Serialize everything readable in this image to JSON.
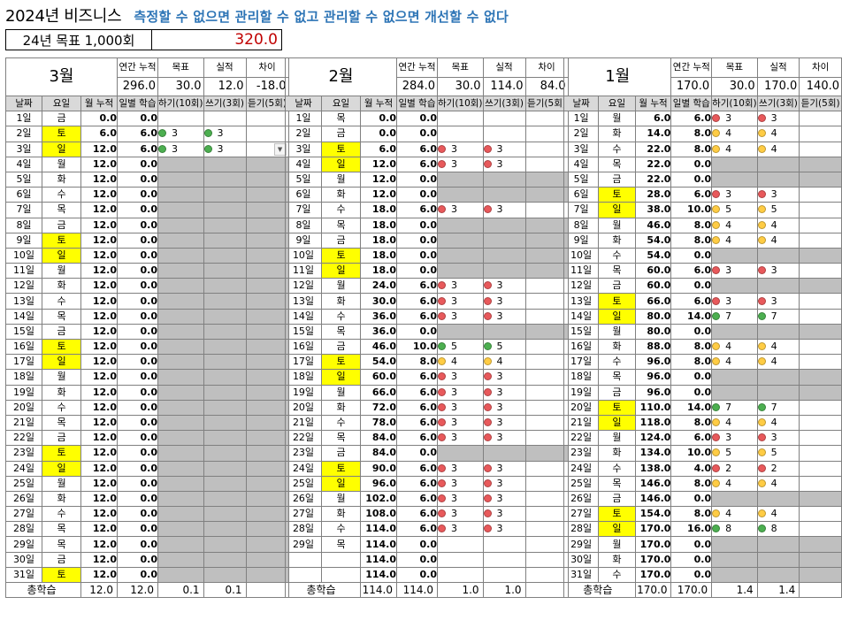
{
  "title": {
    "main": "2024년 비즈니스",
    "slogan": "측정할 수 없으면  관리할 수 없고 관리할 수 없으면 개선할 수 없다"
  },
  "goal": {
    "label": "24년 목표 1,000회",
    "value": "320.0"
  },
  "colors": {
    "red": "#e8595b",
    "yellow": "#ffcc44",
    "green": "#4caf50",
    "highlight": "#ffff00",
    "grey": "#bfbfbf",
    "accent": "#2e75b6"
  },
  "labels": {
    "annual_cum": "연간 누적",
    "target": "목표",
    "actual": "실적",
    "diff": "차이",
    "cols": [
      "날짜",
      "요일",
      "월 누적",
      "일별 학습",
      "하기(10회)",
      "쓰기(3회)",
      "듣기(5회)"
    ],
    "total": "총학습"
  },
  "months": [
    {
      "name": "3월",
      "summary": {
        "annual_cum": "296.0",
        "target": "30.0",
        "actual": "12.0",
        "diff": "-18.0"
      },
      "total": {
        "cum": "12.0",
        "daily": "12.0",
        "speak": "0.1",
        "write": "0.1",
        "listen": ""
      },
      "rows": [
        [
          "1일",
          "금",
          "0.0",
          "0.0",
          "",
          "",
          "",
          ""
        ],
        [
          "2일",
          "토",
          "6.0",
          "6.0",
          "g 3",
          "g 3",
          "",
          ""
        ],
        [
          "3일",
          "일",
          "12.0",
          "6.0",
          "g 3",
          "g 3",
          "dd",
          ""
        ],
        [
          "4일",
          "월",
          "12.0",
          "0.0",
          "-",
          "-",
          "-",
          ""
        ],
        [
          "5일",
          "화",
          "12.0",
          "0.0",
          "-",
          "-",
          "-",
          ""
        ],
        [
          "6일",
          "수",
          "12.0",
          "0.0",
          "-",
          "-",
          "-",
          ""
        ],
        [
          "7일",
          "목",
          "12.0",
          "0.0",
          "-",
          "-",
          "-",
          ""
        ],
        [
          "8일",
          "금",
          "12.0",
          "0.0",
          "-",
          "-",
          "-",
          ""
        ],
        [
          "9일",
          "토",
          "12.0",
          "0.0",
          "-",
          "-",
          "-",
          ""
        ],
        [
          "10일",
          "일",
          "12.0",
          "0.0",
          "-",
          "-",
          "-",
          ""
        ],
        [
          "11일",
          "월",
          "12.0",
          "0.0",
          "-",
          "-",
          "-",
          ""
        ],
        [
          "12일",
          "화",
          "12.0",
          "0.0",
          "-",
          "-",
          "-",
          ""
        ],
        [
          "13일",
          "수",
          "12.0",
          "0.0",
          "-",
          "-",
          "-",
          ""
        ],
        [
          "14일",
          "목",
          "12.0",
          "0.0",
          "-",
          "-",
          "-",
          ""
        ],
        [
          "15일",
          "금",
          "12.0",
          "0.0",
          "-",
          "-",
          "-",
          ""
        ],
        [
          "16일",
          "토",
          "12.0",
          "0.0",
          "-",
          "-",
          "-",
          ""
        ],
        [
          "17일",
          "일",
          "12.0",
          "0.0",
          "-",
          "-",
          "-",
          ""
        ],
        [
          "18일",
          "월",
          "12.0",
          "0.0",
          "-",
          "-",
          "-",
          ""
        ],
        [
          "19일",
          "화",
          "12.0",
          "0.0",
          "-",
          "-",
          "-",
          ""
        ],
        [
          "20일",
          "수",
          "12.0",
          "0.0",
          "-",
          "-",
          "-",
          ""
        ],
        [
          "21일",
          "목",
          "12.0",
          "0.0",
          "-",
          "-",
          "-",
          ""
        ],
        [
          "22일",
          "금",
          "12.0",
          "0.0",
          "-",
          "-",
          "-",
          ""
        ],
        [
          "23일",
          "토",
          "12.0",
          "0.0",
          "-",
          "-",
          "-",
          ""
        ],
        [
          "24일",
          "일",
          "12.0",
          "0.0",
          "-",
          "-",
          "-",
          ""
        ],
        [
          "25일",
          "월",
          "12.0",
          "0.0",
          "-",
          "-",
          "-",
          ""
        ],
        [
          "26일",
          "화",
          "12.0",
          "0.0",
          "-",
          "-",
          "-",
          ""
        ],
        [
          "27일",
          "수",
          "12.0",
          "0.0",
          "-",
          "-",
          "-",
          ""
        ],
        [
          "28일",
          "목",
          "12.0",
          "0.0",
          "-",
          "-",
          "-",
          ""
        ],
        [
          "29일",
          "목",
          "12.0",
          "0.0",
          "-",
          "-",
          "-",
          ""
        ],
        [
          "30일",
          "금",
          "12.0",
          "0.0",
          "-",
          "-",
          "-",
          ""
        ],
        [
          "31일",
          "토",
          "12.0",
          "0.0",
          "-",
          "-",
          "-",
          ""
        ]
      ]
    },
    {
      "name": "2월",
      "summary": {
        "annual_cum": "284.0",
        "target": "30.0",
        "actual": "114.0",
        "diff": "84.0"
      },
      "total": {
        "cum": "114.0",
        "daily": "114.0",
        "speak": "1.0",
        "write": "1.0",
        "listen": ""
      },
      "rows": [
        [
          "1일",
          "목",
          "0.0",
          "0.0",
          "",
          "",
          "",
          ""
        ],
        [
          "2일",
          "금",
          "0.0",
          "0.0",
          "",
          "",
          "",
          ""
        ],
        [
          "3일",
          "토",
          "6.0",
          "6.0",
          "r 3",
          "r 3",
          "",
          ""
        ],
        [
          "4일",
          "일",
          "12.0",
          "6.0",
          "r 3",
          "r 3",
          "",
          ""
        ],
        [
          "5일",
          "월",
          "12.0",
          "0.0",
          "-",
          "-",
          "-",
          ""
        ],
        [
          "6일",
          "화",
          "12.0",
          "0.0",
          "-",
          "-",
          "-",
          ""
        ],
        [
          "7일",
          "수",
          "18.0",
          "6.0",
          "r 3",
          "r 3",
          "",
          ""
        ],
        [
          "8일",
          "목",
          "18.0",
          "0.0",
          "-",
          "-",
          "-",
          ""
        ],
        [
          "9일",
          "금",
          "18.0",
          "0.0",
          "-",
          "-",
          "-",
          ""
        ],
        [
          "10일",
          "토",
          "18.0",
          "0.0",
          "-",
          "-",
          "-",
          ""
        ],
        [
          "11일",
          "일",
          "18.0",
          "0.0",
          "-",
          "-",
          "-",
          ""
        ],
        [
          "12일",
          "월",
          "24.0",
          "6.0",
          "r 3",
          "r 3",
          "",
          ""
        ],
        [
          "13일",
          "화",
          "30.0",
          "6.0",
          "r 3",
          "r 3",
          "",
          ""
        ],
        [
          "14일",
          "수",
          "36.0",
          "6.0",
          "r 3",
          "r 3",
          "",
          ""
        ],
        [
          "15일",
          "목",
          "36.0",
          "0.0",
          "-",
          "-",
          "-",
          ""
        ],
        [
          "16일",
          "금",
          "46.0",
          "10.0",
          "g 5",
          "g 5",
          "",
          ""
        ],
        [
          "17일",
          "토",
          "54.0",
          "8.0",
          "y 4",
          "y 4",
          "",
          ""
        ],
        [
          "18일",
          "일",
          "60.0",
          "6.0",
          "r 3",
          "r 3",
          "",
          ""
        ],
        [
          "19일",
          "월",
          "66.0",
          "6.0",
          "r 3",
          "r 3",
          "",
          ""
        ],
        [
          "20일",
          "화",
          "72.0",
          "6.0",
          "r 3",
          "r 3",
          "",
          ""
        ],
        [
          "21일",
          "수",
          "78.0",
          "6.0",
          "r 3",
          "r 3",
          "",
          ""
        ],
        [
          "22일",
          "목",
          "84.0",
          "6.0",
          "r 3",
          "r 3",
          "",
          ""
        ],
        [
          "23일",
          "금",
          "84.0",
          "0.0",
          "-",
          "-",
          "-",
          ""
        ],
        [
          "24일",
          "토",
          "90.0",
          "6.0",
          "r 3",
          "r 3",
          "",
          ""
        ],
        [
          "25일",
          "일",
          "96.0",
          "6.0",
          "r 3",
          "r 3",
          "",
          ""
        ],
        [
          "26일",
          "월",
          "102.0",
          "6.0",
          "r 3",
          "r 3",
          "",
          ""
        ],
        [
          "27일",
          "화",
          "108.0",
          "6.0",
          "r 3",
          "r 3",
          "",
          ""
        ],
        [
          "28일",
          "수",
          "114.0",
          "6.0",
          "r 3",
          "r 3",
          "",
          ""
        ],
        [
          "29일",
          "목",
          "114.0",
          "0.0",
          "",
          "",
          "",
          ""
        ],
        [
          "",
          "",
          "114.0",
          "0.0",
          "",
          "",
          "",
          ""
        ],
        [
          "",
          "",
          "114.0",
          "0.0",
          "",
          "",
          "",
          ""
        ]
      ]
    },
    {
      "name": "1월",
      "summary": {
        "annual_cum": "170.0",
        "target": "30.0",
        "actual": "170.0",
        "diff": "140.0"
      },
      "total": {
        "cum": "170.0",
        "daily": "170.0",
        "speak": "1.4",
        "write": "1.4",
        "listen": ""
      },
      "rows": [
        [
          "1일",
          "월",
          "6.0",
          "6.0",
          "r 3",
          "r 3",
          "",
          ""
        ],
        [
          "2일",
          "화",
          "14.0",
          "8.0",
          "y 4",
          "y 4",
          "",
          ""
        ],
        [
          "3일",
          "수",
          "22.0",
          "8.0",
          "y 4",
          "y 4",
          "",
          ""
        ],
        [
          "4일",
          "목",
          "22.0",
          "0.0",
          "-",
          "-",
          "-",
          ""
        ],
        [
          "5일",
          "금",
          "22.0",
          "0.0",
          "-",
          "-",
          "-",
          ""
        ],
        [
          "6일",
          "토",
          "28.0",
          "6.0",
          "r 3",
          "r 3",
          "",
          ""
        ],
        [
          "7일",
          "일",
          "38.0",
          "10.0",
          "y 5",
          "y 5",
          "",
          ""
        ],
        [
          "8일",
          "월",
          "46.0",
          "8.0",
          "y 4",
          "y 4",
          "",
          ""
        ],
        [
          "9일",
          "화",
          "54.0",
          "8.0",
          "y 4",
          "y 4",
          "",
          ""
        ],
        [
          "10일",
          "수",
          "54.0",
          "0.0",
          "-",
          "-",
          "-",
          ""
        ],
        [
          "11일",
          "목",
          "60.0",
          "6.0",
          "r 3",
          "r 3",
          "",
          ""
        ],
        [
          "12일",
          "금",
          "60.0",
          "0.0",
          "-",
          "-",
          "-",
          ""
        ],
        [
          "13일",
          "토",
          "66.0",
          "6.0",
          "r 3",
          "r 3",
          "",
          ""
        ],
        [
          "14일",
          "일",
          "80.0",
          "14.0",
          "g 7",
          "g 7",
          "",
          ""
        ],
        [
          "15일",
          "월",
          "80.0",
          "0.0",
          "-",
          "-",
          "-",
          ""
        ],
        [
          "16일",
          "화",
          "88.0",
          "8.0",
          "y 4",
          "y 4",
          "",
          ""
        ],
        [
          "17일",
          "수",
          "96.0",
          "8.0",
          "y 4",
          "y 4",
          "",
          ""
        ],
        [
          "18일",
          "목",
          "96.0",
          "0.0",
          "-",
          "-",
          "-",
          ""
        ],
        [
          "19일",
          "금",
          "96.0",
          "0.0",
          "-",
          "-",
          "-",
          ""
        ],
        [
          "20일",
          "토",
          "110.0",
          "14.0",
          "g 7",
          "g 7",
          "",
          ""
        ],
        [
          "21일",
          "일",
          "118.0",
          "8.0",
          "y 4",
          "y 4",
          "",
          ""
        ],
        [
          "22일",
          "월",
          "124.0",
          "6.0",
          "r 3",
          "r 3",
          "",
          ""
        ],
        [
          "23일",
          "화",
          "134.0",
          "10.0",
          "y 5",
          "y 5",
          "",
          ""
        ],
        [
          "24일",
          "수",
          "138.0",
          "4.0",
          "r 2",
          "r 2",
          "",
          ""
        ],
        [
          "25일",
          "목",
          "146.0",
          "8.0",
          "y 4",
          "y 4",
          "",
          ""
        ],
        [
          "26일",
          "금",
          "146.0",
          "0.0",
          "-",
          "-",
          "-",
          ""
        ],
        [
          "27일",
          "토",
          "154.0",
          "8.0",
          "y 4",
          "y 4",
          "",
          ""
        ],
        [
          "28일",
          "일",
          "170.0",
          "16.0",
          "g 8",
          "g 8",
          "",
          ""
        ],
        [
          "29일",
          "월",
          "170.0",
          "0.0",
          "-",
          "-",
          "-",
          ""
        ],
        [
          "30일",
          "화",
          "170.0",
          "0.0",
          "-",
          "-",
          "-",
          ""
        ],
        [
          "31일",
          "수",
          "170.0",
          "0.0",
          "-",
          "-",
          "-",
          ""
        ]
      ]
    }
  ]
}
